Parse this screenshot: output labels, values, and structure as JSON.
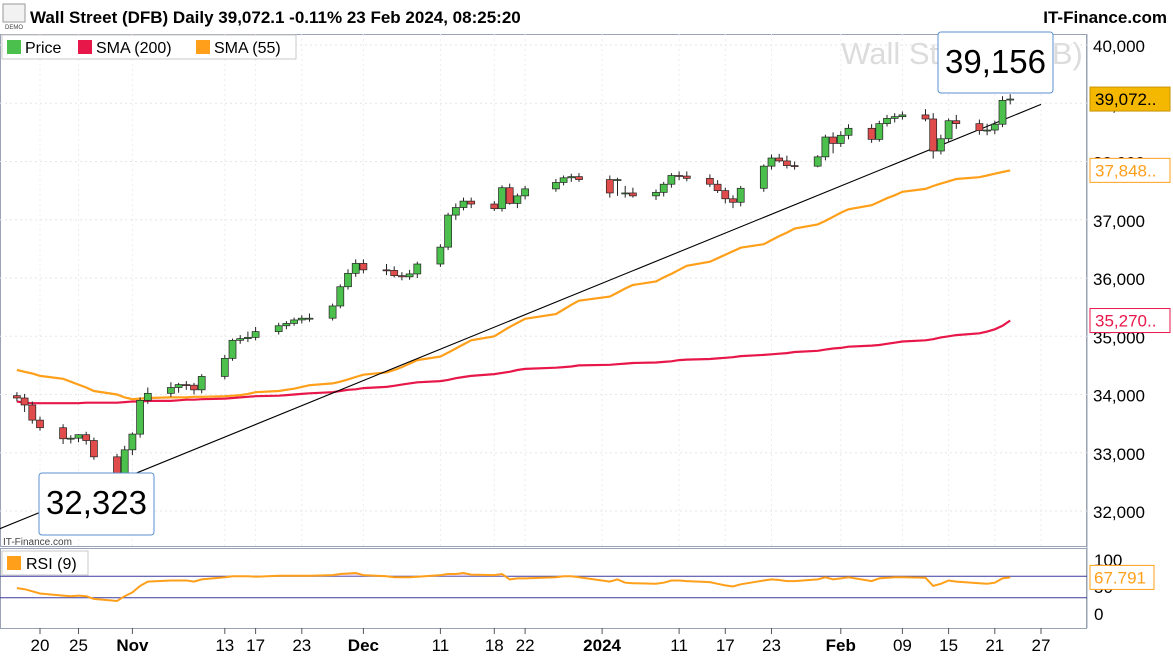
{
  "header": {
    "title": "Wall Street (DFB) Daily 39,072.1 -0.11% 23 Feb 2024, 08:25:20",
    "brand": "IT-Finance.com",
    "demo_badge": "DEMO"
  },
  "legend": [
    {
      "name": "Price",
      "color": "#4cc04c"
    },
    {
      "name": "SMA (200)",
      "color": "#e8174a"
    },
    {
      "name": "SMA (55)",
      "color": "#ff9f1a"
    }
  ],
  "watermark": "Wall Street (DFB)",
  "copyright": "IT-Finance.com",
  "annotations": {
    "high_label": "39,156",
    "low_label": "32,323"
  },
  "price_axis": {
    "ticks": [
      "40,000",
      "39,000",
      "38,000",
      "37,000",
      "36,000",
      "35,000",
      "34,000",
      "33,000",
      "32,000"
    ],
    "tick_values": [
      40000,
      39000,
      38000,
      37000,
      36000,
      35000,
      34000,
      33000,
      32000
    ],
    "price_tag": "39,072..",
    "sma55_tag": "37,848..",
    "sma200_tag": "35,270.."
  },
  "rsi": {
    "label": "RSI (9)",
    "value_tag": "67.791",
    "ticks": [
      "100",
      "50",
      "0"
    ],
    "levels": [
      70,
      30
    ],
    "color": "#ff9f1a"
  },
  "x_axis": {
    "labels": [
      "20",
      "25",
      "Nov",
      "13",
      "17",
      "23",
      "Dec",
      "11",
      "18",
      "22",
      "2024",
      "11",
      "17",
      "23",
      "Feb",
      "09",
      "15",
      "21",
      "27"
    ]
  },
  "colors": {
    "up": "#4cc04c",
    "down": "#e04b4b",
    "sma200": "#e8174a",
    "sma55": "#ff9f1a",
    "trendline": "#000000"
  },
  "chart_data": {
    "type": "candlestick",
    "title": "Wall Street (DFB) Daily",
    "ylim": [
      31700,
      40200
    ],
    "dates": [
      "2023-10-17",
      "2023-10-18",
      "2023-10-19",
      "2023-10-20",
      "2023-10-23",
      "2023-10-24",
      "2023-10-25",
      "2023-10-26",
      "2023-10-27",
      "2023-10-30",
      "2023-10-31",
      "2023-11-01",
      "2023-11-02",
      "2023-11-03",
      "2023-11-06",
      "2023-11-07",
      "2023-11-08",
      "2023-11-09",
      "2023-11-10",
      "2023-11-13",
      "2023-11-14",
      "2023-11-15",
      "2023-11-16",
      "2023-11-17",
      "2023-11-20",
      "2023-11-21",
      "2023-11-22",
      "2023-11-23",
      "2023-11-24",
      "2023-11-27",
      "2023-11-28",
      "2023-11-29",
      "2023-11-30",
      "2023-12-01",
      "2023-12-04",
      "2023-12-05",
      "2023-12-06",
      "2023-12-07",
      "2023-12-08",
      "2023-12-11",
      "2023-12-12",
      "2023-12-13",
      "2023-12-14",
      "2023-12-15",
      "2023-12-18",
      "2023-12-19",
      "2023-12-20",
      "2023-12-21",
      "2023-12-22",
      "2023-12-26",
      "2023-12-27",
      "2023-12-28",
      "2023-12-29",
      "2024-01-02",
      "2024-01-03",
      "2024-01-04",
      "2024-01-05",
      "2024-01-08",
      "2024-01-09",
      "2024-01-10",
      "2024-01-11",
      "2024-01-12",
      "2024-01-15",
      "2024-01-16",
      "2024-01-17",
      "2024-01-18",
      "2024-01-19",
      "2024-01-22",
      "2024-01-23",
      "2024-01-24",
      "2024-01-25",
      "2024-01-26",
      "2024-01-29",
      "2024-01-30",
      "2024-01-31",
      "2024-02-01",
      "2024-02-02",
      "2024-02-05",
      "2024-02-06",
      "2024-02-07",
      "2024-02-08",
      "2024-02-09",
      "2024-02-12",
      "2024-02-13",
      "2024-02-14",
      "2024-02-15",
      "2024-02-16",
      "2024-02-19",
      "2024-02-20",
      "2024-02-21",
      "2024-02-22",
      "2024-02-23"
    ],
    "open": [
      33980,
      33940,
      33820,
      33560,
      33430,
      33240,
      33250,
      33310,
      33210,
      32930,
      32650,
      33050,
      33320,
      33900,
      34020,
      34120,
      34170,
      34160,
      34080,
      34310,
      34620,
      34930,
      34960,
      34980,
      35080,
      35180,
      35220,
      35280,
      35310,
      35310,
      35520,
      35850,
      36080,
      36250,
      36140,
      36130,
      36040,
      36020,
      36070,
      36240,
      36530,
      37080,
      37210,
      37320,
      37270,
      37190,
      37550,
      37280,
      37410,
      37530,
      37640,
      37720,
      37740,
      37690,
      37690,
      37460,
      37460,
      37410,
      37470,
      37610,
      37760,
      37750,
      37710,
      37610,
      37500,
      37360,
      37300,
      37540,
      37920,
      38060,
      38010,
      37930,
      37920,
      38080,
      38420,
      38310,
      38450,
      38570,
      38380,
      38650,
      38740,
      38770,
      38800,
      38730,
      38180,
      38390,
      38700,
      38650,
      38530,
      38540,
      38640,
      39072
    ],
    "high": [
      34040,
      34010,
      33880,
      33620,
      33490,
      33300,
      33320,
      33360,
      33260,
      32980,
      33120,
      33350,
      33950,
      34120,
      34210,
      34200,
      34230,
      34200,
      34350,
      34680,
      34960,
      35020,
      35080,
      35160,
      35230,
      35260,
      35320,
      35360,
      35390,
      35560,
      35890,
      36150,
      36320,
      36320,
      36240,
      36200,
      36100,
      36140,
      36280,
      36580,
      37120,
      37280,
      37380,
      37380,
      37320,
      37590,
      37620,
      37450,
      37580,
      37700,
      37760,
      37790,
      37800,
      37760,
      37720,
      37580,
      37550,
      37520,
      37650,
      37800,
      37830,
      37830,
      37780,
      37680,
      37550,
      37420,
      37580,
      37950,
      38120,
      38130,
      38100,
      38000,
      38110,
      38460,
      38500,
      38520,
      38640,
      38640,
      38700,
      38800,
      38830,
      38860,
      38900,
      38830,
      38460,
      38740,
      38800,
      38720,
      38650,
      38700,
      39120,
      39156
    ],
    "low": [
      33880,
      33700,
      33500,
      33380,
      33150,
      33160,
      33180,
      33140,
      32880,
      32600,
      32323,
      32960,
      33260,
      33840,
      33960,
      34030,
      34080,
      34000,
      34020,
      34260,
      34580,
      34870,
      34900,
      34930,
      35030,
      35120,
      35180,
      35220,
      35250,
      35270,
      35480,
      35800,
      36020,
      36080,
      36050,
      36010,
      35960,
      35970,
      36000,
      36190,
      36480,
      37000,
      37160,
      37200,
      37150,
      37140,
      37260,
      37200,
      37350,
      37480,
      37590,
      37650,
      37650,
      37380,
      37410,
      37380,
      37380,
      37340,
      37400,
      37550,
      37680,
      37660,
      37560,
      37460,
      37280,
      37200,
      37230,
      37480,
      37860,
      37980,
      37880,
      37860,
      37900,
      38020,
      38140,
      38250,
      38380,
      38320,
      38340,
      38600,
      38670,
      38720,
      38690,
      38050,
      38120,
      38340,
      38560,
      38460,
      38450,
      38470,
      38590,
      38980
    ],
    "close": [
      33940,
      33820,
      33560,
      33430,
      33240,
      33250,
      33310,
      33210,
      32930,
      32650,
      33050,
      33320,
      33900,
      34020,
      34120,
      34170,
      34160,
      34080,
      34310,
      34620,
      34930,
      34960,
      34980,
      35080,
      35180,
      35220,
      35280,
      35310,
      35310,
      35520,
      35850,
      36080,
      36250,
      36140,
      36130,
      36040,
      36020,
      36070,
      36240,
      36530,
      37080,
      37210,
      37320,
      37270,
      37190,
      37550,
      37280,
      37410,
      37530,
      37640,
      37720,
      37740,
      37690,
      37460,
      37690,
      37460,
      37410,
      37470,
      37610,
      37760,
      37750,
      37710,
      37610,
      37500,
      37360,
      37300,
      37540,
      37920,
      38060,
      38010,
      37930,
      37920,
      38080,
      38420,
      38310,
      38450,
      38570,
      38380,
      38650,
      38740,
      38770,
      38800,
      38730,
      38180,
      38390,
      38700,
      38650,
      38530,
      38540,
      38640,
      39050,
      39072
    ],
    "sma200": [
      33880,
      33860,
      33850,
      33850,
      33850,
      33850,
      33850,
      33860,
      33860,
      33860,
      33870,
      33880,
      33880,
      33890,
      33890,
      33900,
      33910,
      33910,
      33920,
      33930,
      33940,
      33950,
      33960,
      33970,
      33980,
      33990,
      34000,
      34010,
      34020,
      34040,
      34060,
      34080,
      34090,
      34110,
      34130,
      34150,
      34170,
      34190,
      34210,
      34230,
      34250,
      34280,
      34300,
      34320,
      34350,
      34370,
      34390,
      34420,
      34440,
      34460,
      34470,
      34480,
      34500,
      34510,
      34520,
      34530,
      34540,
      34550,
      34560,
      34570,
      34590,
      34600,
      34610,
      34620,
      34630,
      34640,
      34660,
      34680,
      34690,
      34700,
      34710,
      34730,
      34750,
      34770,
      34790,
      34800,
      34820,
      34840,
      34850,
      34870,
      34890,
      34910,
      34930,
      34950,
      34980,
      35000,
      35020,
      35050,
      35080,
      35120,
      35180,
      35270
    ],
    "sma55": [
      34420,
      34390,
      34360,
      34320,
      34270,
      34220,
      34170,
      34120,
      34060,
      34000,
      33950,
      33920,
      33930,
      33940,
      33950,
      33950,
      33950,
      33960,
      33960,
      33970,
      33980,
      33990,
      34010,
      34040,
      34060,
      34080,
      34100,
      34130,
      34160,
      34190,
      34220,
      34260,
      34300,
      34340,
      34380,
      34420,
      34470,
      34530,
      34590,
      34650,
      34720,
      34790,
      34860,
      34930,
      35000,
      35080,
      35160,
      35230,
      35300,
      35380,
      35460,
      35540,
      35610,
      35680,
      35750,
      35820,
      35880,
      35940,
      36010,
      36070,
      36140,
      36210,
      36280,
      36340,
      36400,
      36460,
      36520,
      36580,
      36650,
      36720,
      36780,
      36850,
      36920,
      36980,
      37050,
      37120,
      37180,
      37250,
      37310,
      37370,
      37420,
      37480,
      37530,
      37580,
      37620,
      37660,
      37700,
      37730,
      37760,
      37790,
      37820,
      37848
    ],
    "rsi9": [
      48,
      46,
      42,
      38,
      34,
      33,
      34,
      33,
      28,
      24,
      33,
      40,
      52,
      60,
      62,
      62,
      62,
      60,
      64,
      68,
      70,
      70,
      70,
      69,
      71,
      71,
      71,
      71,
      71,
      72,
      74,
      75,
      76,
      72,
      70,
      68,
      68,
      68,
      69,
      72,
      74,
      74,
      76,
      73,
      72,
      74,
      64,
      66,
      66,
      68,
      70,
      70,
      68,
      60,
      64,
      58,
      57,
      56,
      58,
      62,
      62,
      61,
      59,
      56,
      53,
      51,
      55,
      62,
      64,
      63,
      61,
      61,
      64,
      68,
      64,
      66,
      68,
      61,
      66,
      67,
      68,
      68,
      67,
      52,
      56,
      62,
      60,
      57,
      56,
      58,
      66,
      67.791
    ],
    "trendline": {
      "x": [
        "2023-10-13",
        "2024-02-27"
      ],
      "y": [
        31600,
        38980
      ]
    },
    "yaxis_label": "",
    "xaxis_label": ""
  }
}
